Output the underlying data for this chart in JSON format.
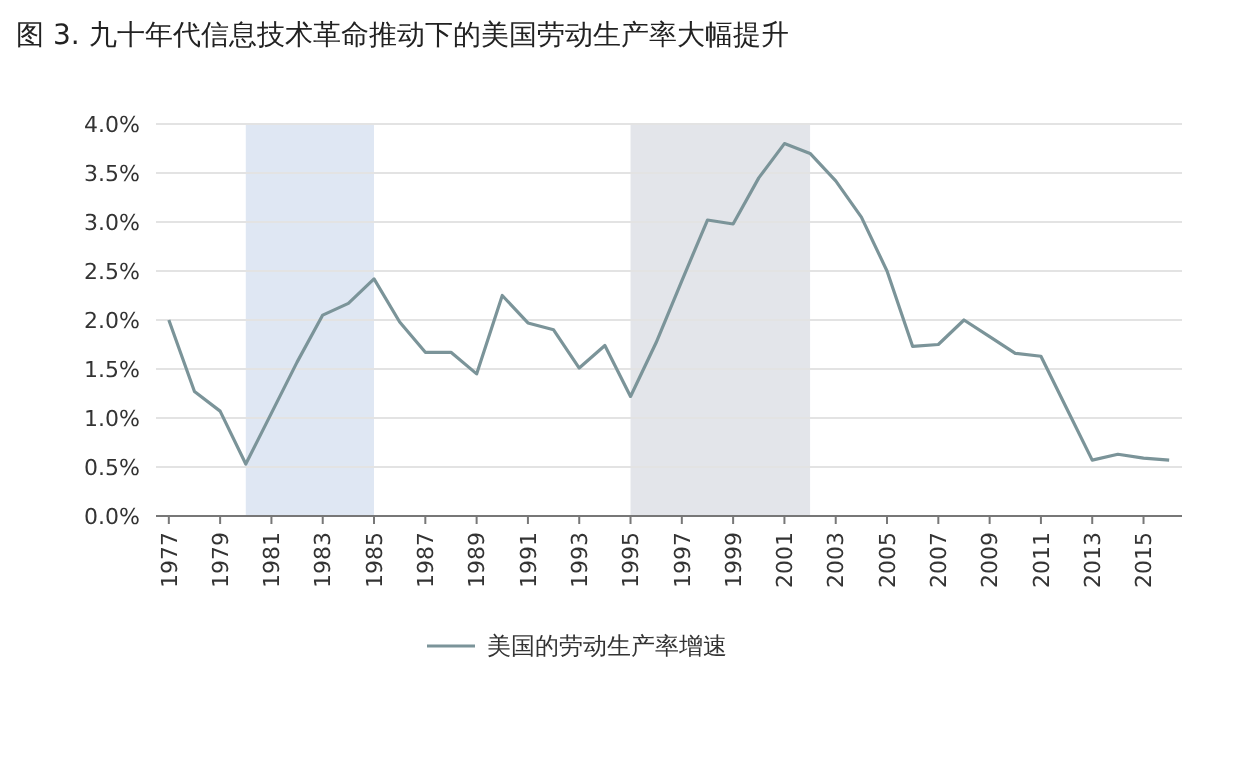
{
  "chart_data": {
    "type": "line",
    "title": "图 3. 九十年代信息技术革命推动下的美国劳动生产率大幅提升",
    "x": [
      1977,
      1978,
      1979,
      1980,
      1981,
      1982,
      1983,
      1984,
      1985,
      1986,
      1987,
      1988,
      1989,
      1990,
      1991,
      1992,
      1993,
      1994,
      1995,
      1996,
      1997,
      1998,
      1999,
      2000,
      2001,
      2002,
      2003,
      2004,
      2005,
      2006,
      2007,
      2008,
      2009,
      2010,
      2011,
      2012,
      2013,
      2014,
      2015,
      2016
    ],
    "series": [
      {
        "name": "美国的劳动生产率增速",
        "color": "#7b9499",
        "values": [
          2.0,
          1.27,
          1.07,
          0.53,
          1.05,
          1.57,
          2.05,
          2.17,
          2.42,
          1.98,
          1.67,
          1.67,
          1.45,
          2.25,
          1.97,
          1.9,
          1.51,
          1.74,
          1.22,
          1.77,
          2.4,
          3.02,
          2.98,
          3.45,
          3.8,
          3.7,
          3.42,
          3.05,
          2.5,
          1.73,
          1.75,
          2.0,
          1.83,
          1.66,
          1.63,
          1.1,
          0.57,
          0.63,
          0.59,
          0.57
        ]
      }
    ],
    "xlim": [
      1976.5,
      2016.5
    ],
    "xticks": [
      1977,
      1979,
      1981,
      1983,
      1985,
      1987,
      1989,
      1991,
      1993,
      1995,
      1997,
      1999,
      2001,
      2003,
      2005,
      2007,
      2009,
      2011,
      2013,
      2015
    ],
    "ylim": [
      0,
      4
    ],
    "yticks": [
      {
        "value": 0,
        "label": "0.0%"
      },
      {
        "value": 0.5,
        "label": "0.5%"
      },
      {
        "value": 1,
        "label": "1.0%"
      },
      {
        "value": 1.5,
        "label": "1.5%"
      },
      {
        "value": 2,
        "label": "2.0%"
      },
      {
        "value": 2.5,
        "label": "2.5%"
      },
      {
        "value": 3,
        "label": "3.0%"
      },
      {
        "value": 3.5,
        "label": "3.5%"
      },
      {
        "value": 4,
        "label": "4.0%"
      }
    ],
    "bands": [
      {
        "axis": "x",
        "from": 1980,
        "to": 1985,
        "color": "#dfe7f3"
      },
      {
        "axis": "x",
        "from": 1995,
        "to": 2002,
        "color": "#e3e5ea"
      }
    ],
    "grid": "y",
    "legend": "bottom",
    "marker": "none",
    "line_style": "solid"
  }
}
